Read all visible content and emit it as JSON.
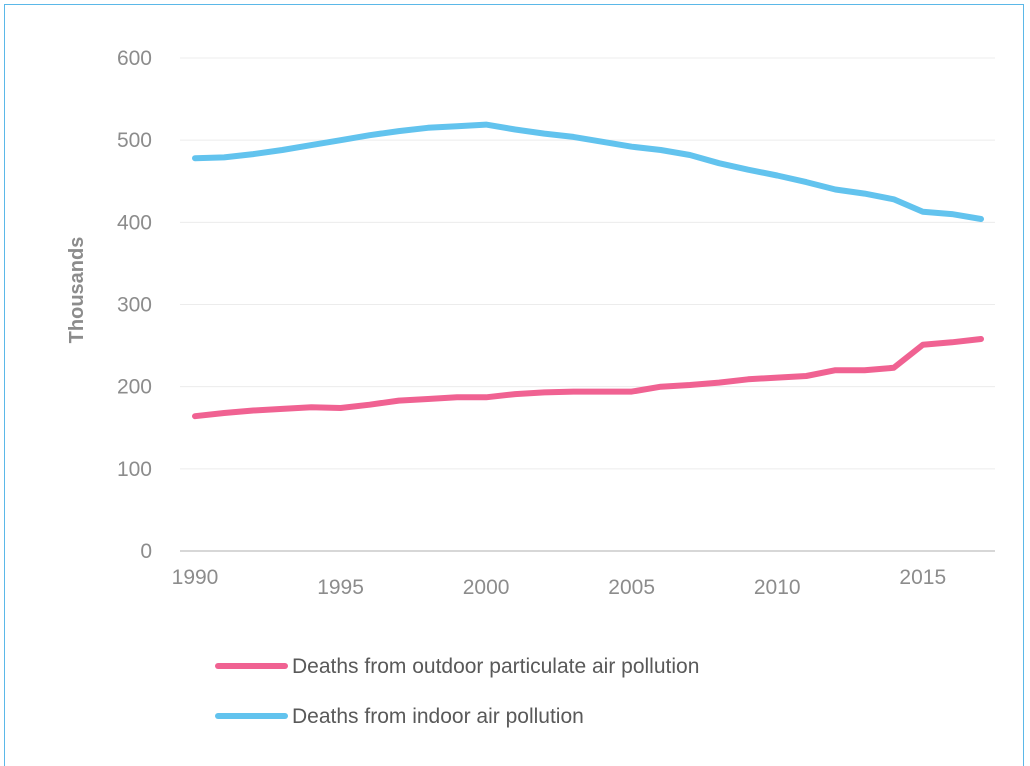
{
  "chart_data": {
    "type": "line",
    "title": "",
    "xlabel": "",
    "ylabel": "Thousands",
    "ylim": [
      0,
      600
    ],
    "yticks": [
      "0",
      "100",
      "200",
      "300",
      "400",
      "500",
      "600"
    ],
    "xticks": [
      "1990",
      "1995",
      "2000",
      "2005",
      "2010",
      "2015"
    ],
    "grid": true,
    "legend_position": "bottom",
    "x": [
      1990,
      1991,
      1992,
      1993,
      1994,
      1995,
      1996,
      1997,
      1998,
      1999,
      2000,
      2001,
      2002,
      2003,
      2004,
      2005,
      2006,
      2007,
      2008,
      2009,
      2010,
      2011,
      2012,
      2013,
      2014,
      2015,
      2016,
      2017
    ],
    "series": [
      {
        "name": "Deaths from outdoor particulate air pollution",
        "color": "#f06292",
        "values": [
          164,
          168,
          171,
          173,
          175,
          174,
          178,
          183,
          185,
          187,
          187,
          191,
          193,
          194,
          194,
          194,
          200,
          202,
          205,
          209,
          211,
          213,
          220,
          220,
          223,
          251,
          254,
          258
        ]
      },
      {
        "name": "Deaths from indoor air pollution",
        "color": "#62c3ee",
        "values": [
          478,
          479,
          483,
          488,
          494,
          500,
          506,
          511,
          515,
          517,
          519,
          513,
          508,
          504,
          498,
          492,
          488,
          482,
          472,
          464,
          457,
          449,
          440,
          435,
          428,
          413,
          410,
          404
        ]
      }
    ]
  }
}
